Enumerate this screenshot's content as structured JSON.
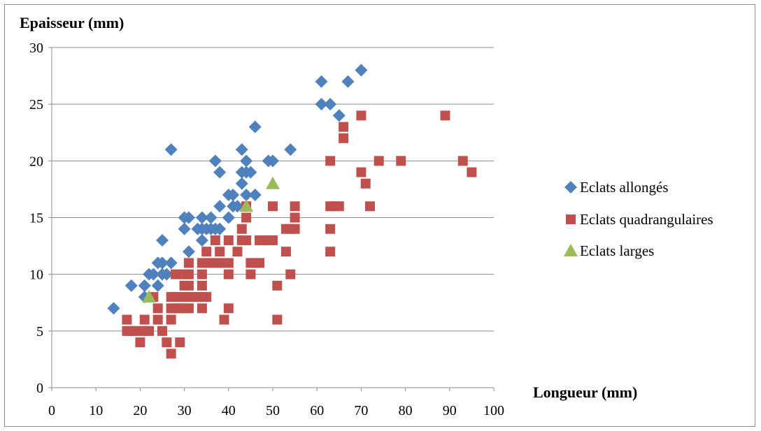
{
  "chart_data": {
    "type": "scatter",
    "title": "",
    "xlabel": "Longueur (mm)",
    "ylabel": "Epaisseur (mm)",
    "xlim": [
      0,
      100
    ],
    "ylim": [
      0,
      30
    ],
    "xticks": [
      0,
      10,
      20,
      30,
      40,
      50,
      60,
      70,
      80,
      90,
      100
    ],
    "yticks": [
      0,
      5,
      10,
      15,
      20,
      25,
      30
    ],
    "grid": "horizontal",
    "legend_position": "right",
    "series": [
      {
        "name": "Eclats allongés",
        "marker": "diamond",
        "color": "#4f81bd",
        "points": [
          [
            14,
            7
          ],
          [
            18,
            9
          ],
          [
            21,
            8
          ],
          [
            21,
            9
          ],
          [
            22,
            10
          ],
          [
            23,
            10
          ],
          [
            24,
            9
          ],
          [
            24,
            11
          ],
          [
            25,
            10
          ],
          [
            25,
            11
          ],
          [
            25,
            13
          ],
          [
            26,
            10
          ],
          [
            27,
            11
          ],
          [
            27,
            21
          ],
          [
            30,
            14
          ],
          [
            30,
            15
          ],
          [
            31,
            12
          ],
          [
            31,
            15
          ],
          [
            33,
            14
          ],
          [
            34,
            13
          ],
          [
            34,
            14
          ],
          [
            34,
            15
          ],
          [
            35,
            14
          ],
          [
            36,
            15
          ],
          [
            36,
            14
          ],
          [
            37,
            14
          ],
          [
            37,
            20
          ],
          [
            38,
            16
          ],
          [
            38,
            14
          ],
          [
            38,
            19
          ],
          [
            40,
            15
          ],
          [
            40,
            17
          ],
          [
            41,
            16
          ],
          [
            41,
            17
          ],
          [
            42,
            16
          ],
          [
            43,
            18
          ],
          [
            43,
            19
          ],
          [
            43,
            21
          ],
          [
            44,
            19
          ],
          [
            44,
            20
          ],
          [
            44,
            17
          ],
          [
            45,
            19
          ],
          [
            46,
            17
          ],
          [
            46,
            23
          ],
          [
            49,
            20
          ],
          [
            50,
            20
          ],
          [
            54,
            21
          ],
          [
            61,
            27
          ],
          [
            61,
            25
          ],
          [
            63,
            25
          ],
          [
            65,
            24
          ],
          [
            67,
            27
          ],
          [
            70,
            28
          ]
        ]
      },
      {
        "name": "Eclats quadrangulaires",
        "marker": "square",
        "color": "#c0504d",
        "points": [
          [
            17,
            6
          ],
          [
            17,
            5
          ],
          [
            18,
            5
          ],
          [
            19,
            5
          ],
          [
            20,
            4
          ],
          [
            21,
            6
          ],
          [
            21,
            5
          ],
          [
            22,
            5
          ],
          [
            23,
            8
          ],
          [
            24,
            7
          ],
          [
            24,
            6
          ],
          [
            25,
            5
          ],
          [
            26,
            4
          ],
          [
            27,
            8
          ],
          [
            27,
            7
          ],
          [
            27,
            6
          ],
          [
            27,
            3
          ],
          [
            28,
            10
          ],
          [
            28,
            8
          ],
          [
            28,
            7
          ],
          [
            29,
            4
          ],
          [
            29,
            8
          ],
          [
            29,
            7
          ],
          [
            30,
            10
          ],
          [
            30,
            9
          ],
          [
            30,
            8
          ],
          [
            30,
            7
          ],
          [
            31,
            11
          ],
          [
            31,
            10
          ],
          [
            31,
            9
          ],
          [
            31,
            8
          ],
          [
            31,
            7
          ],
          [
            32,
            8
          ],
          [
            33,
            8
          ],
          [
            34,
            11
          ],
          [
            34,
            10
          ],
          [
            34,
            9
          ],
          [
            34,
            8
          ],
          [
            34,
            7
          ],
          [
            35,
            12
          ],
          [
            35,
            11
          ],
          [
            35,
            8
          ],
          [
            37,
            13
          ],
          [
            37,
            11
          ],
          [
            38,
            12
          ],
          [
            38,
            11
          ],
          [
            39,
            6
          ],
          [
            40,
            13
          ],
          [
            40,
            11
          ],
          [
            40,
            10
          ],
          [
            40,
            7
          ],
          [
            42,
            12
          ],
          [
            43,
            14
          ],
          [
            43,
            13
          ],
          [
            44,
            16
          ],
          [
            44,
            15
          ],
          [
            44,
            13
          ],
          [
            45,
            11
          ],
          [
            45,
            10
          ],
          [
            46,
            11
          ],
          [
            47,
            11
          ],
          [
            47,
            13
          ],
          [
            48,
            13
          ],
          [
            49,
            13
          ],
          [
            50,
            16
          ],
          [
            50,
            13
          ],
          [
            51,
            9
          ],
          [
            51,
            6
          ],
          [
            53,
            14
          ],
          [
            53,
            12
          ],
          [
            54,
            14
          ],
          [
            54,
            10
          ],
          [
            55,
            16
          ],
          [
            55,
            15
          ],
          [
            55,
            14
          ],
          [
            63,
            20
          ],
          [
            63,
            16
          ],
          [
            63,
            14
          ],
          [
            63,
            12
          ],
          [
            64,
            16
          ],
          [
            65,
            16
          ],
          [
            66,
            23
          ],
          [
            66,
            22
          ],
          [
            70,
            24
          ],
          [
            70,
            19
          ],
          [
            71,
            18
          ],
          [
            72,
            16
          ],
          [
            74,
            20
          ],
          [
            79,
            20
          ],
          [
            89,
            24
          ],
          [
            93,
            20
          ],
          [
            95,
            19
          ]
        ]
      },
      {
        "name": "Eclats larges",
        "marker": "triangle",
        "color": "#9bbb59",
        "points": [
          [
            22,
            8
          ],
          [
            44,
            16
          ],
          [
            50,
            18
          ]
        ]
      }
    ]
  }
}
